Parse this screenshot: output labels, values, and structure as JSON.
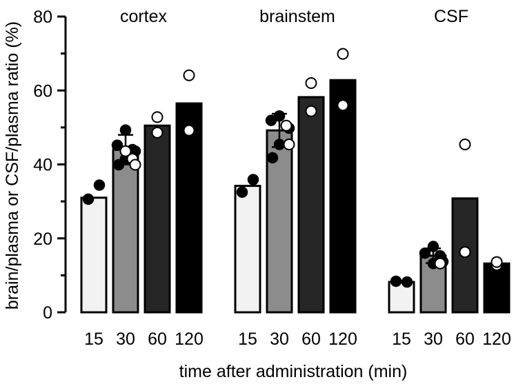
{
  "chart_data": {
    "type": "bar",
    "ylabel": "brain/plasma or CSF/plasma ratio (%)",
    "xlabel": "time after administration (min)",
    "ylim": [
      0,
      80
    ],
    "yticks": [
      0,
      20,
      40,
      60,
      80
    ],
    "ytick_labels": [
      "0",
      "20",
      "40",
      "60",
      "80"
    ],
    "grid": false,
    "colors": [
      "#f2f2f2",
      "#8c8c8c",
      "#262626",
      "#000000"
    ],
    "groups": [
      {
        "name": "cortex",
        "categories": [
          "15",
          "30",
          "60",
          "120"
        ],
        "values": [
          31,
          44,
          50.5,
          56.5
        ],
        "errors": [
          null,
          4,
          null,
          null
        ],
        "points": [
          {
            "filled": [
              34.4,
              30.6
            ],
            "open": []
          },
          {
            "filled": [
              49.3,
              45.2,
              44.0,
              43.6,
              41.5,
              39.9
            ],
            "open": [
              41.5,
              39.9,
              43.6
            ]
          },
          {
            "filled": [],
            "open": [
              52.8,
              48.6
            ]
          },
          {
            "filled": [],
            "open": [
              64.1,
              49.2
            ]
          }
        ]
      },
      {
        "name": "brainstem",
        "categories": [
          "15",
          "30",
          "60",
          "120"
        ],
        "values": [
          34.2,
          49.2,
          58.2,
          62.8
        ],
        "errors": [
          null,
          4.5,
          null,
          null
        ],
        "points": [
          {
            "filled": [
              35.9,
              32.5
            ],
            "open": []
          },
          {
            "filled": [
              53.1,
              51.9,
              50.5,
              49.8,
              45.4,
              41.8
            ],
            "open": [
              50.5,
              45.4
            ]
          },
          {
            "filled": [],
            "open": [
              62.0,
              54.4
            ]
          },
          {
            "filled": [],
            "open": [
              69.9,
              56.0
            ]
          }
        ]
      },
      {
        "name": "CSF",
        "categories": [
          "15",
          "30",
          "60",
          "120"
        ],
        "values": [
          8.2,
          15.3,
          30.8,
          13.2
        ],
        "errors": [
          null,
          2,
          null,
          null
        ],
        "points": [
          {
            "filled": [
              8.2,
              8.4
            ],
            "open": []
          },
          {
            "filled": [
              17.8,
              16.0,
              15.3,
              13.7,
              13.2
            ],
            "open": [
              13.2
            ]
          },
          {
            "filled": [],
            "open": [
              45.4,
              16.3
            ]
          },
          {
            "filled": [],
            "open": [
              12.8,
              13.6
            ]
          }
        ]
      }
    ]
  }
}
